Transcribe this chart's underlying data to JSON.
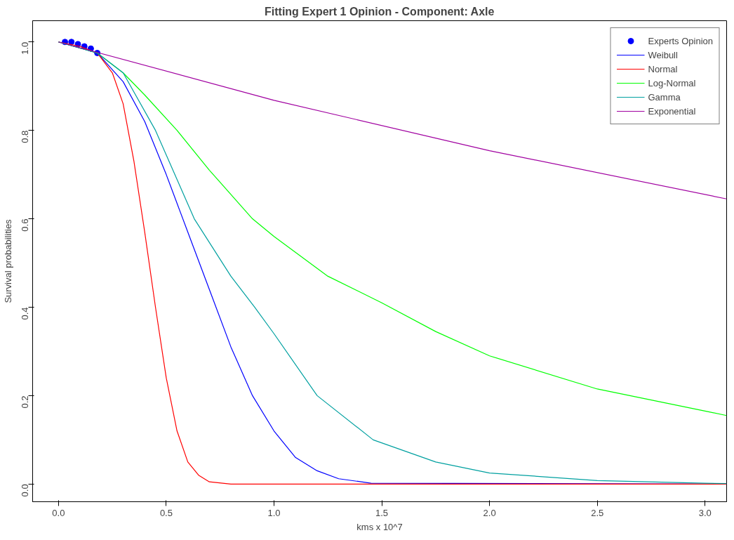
{
  "chart_data": {
    "type": "line",
    "title": "Fitting Expert 1 Opinion - Component: Axle",
    "xlabel": "kms x 10^7",
    "ylabel": "Survival probabilities",
    "xlim": [
      -0.12,
      3.1
    ],
    "ylim": [
      -0.04,
      1.048
    ],
    "xticks": [
      {
        "value": 0,
        "label": "0.0"
      },
      0.5,
      {
        "value": 1,
        "label": "1.0"
      },
      1.5,
      {
        "value": 2,
        "label": "2.0"
      },
      2.5,
      {
        "value": 3,
        "label": "3.0"
      }
    ],
    "yticks": [
      {
        "value": 0,
        "label": "0.0"
      },
      0.2,
      0.4,
      0.6,
      0.8,
      {
        "value": 1,
        "label": "1.0"
      }
    ],
    "grid": false,
    "legend": "top right",
    "line_style": "solid",
    "series": [
      {
        "name": "Experts Opinion",
        "type": "scatter",
        "marker": "circle",
        "color": "#0000ff",
        "x": [
          0.03,
          0.06,
          0.09,
          0.12,
          0.15,
          0.18
        ],
        "values": [
          1.0,
          1.0,
          0.995,
          0.99,
          0.985,
          0.975
        ]
      },
      {
        "name": "Weibull",
        "color": "#0000ff",
        "x": [
          0,
          0.18,
          0.3,
          0.4,
          0.5,
          0.6,
          0.7,
          0.8,
          0.9,
          1.0,
          1.1,
          1.2,
          1.3,
          1.45,
          3.1
        ],
        "values": [
          1,
          0.975,
          0.91,
          0.82,
          0.7,
          0.57,
          0.44,
          0.31,
          0.2,
          0.12,
          0.06,
          0.03,
          0.012,
          0.002,
          0
        ]
      },
      {
        "name": "Normal",
        "color": "#ff0000",
        "x": [
          0,
          0.1,
          0.18,
          0.25,
          0.3,
          0.35,
          0.4,
          0.45,
          0.5,
          0.55,
          0.6,
          0.65,
          0.7,
          0.8,
          0.9,
          3.1
        ],
        "values": [
          1,
          0.99,
          0.975,
          0.93,
          0.86,
          0.73,
          0.57,
          0.4,
          0.24,
          0.12,
          0.05,
          0.02,
          0.005,
          0,
          0,
          0
        ]
      },
      {
        "name": "Log-Normal",
        "color": "#00ff00",
        "x": [
          0,
          0.18,
          0.3,
          0.4,
          0.55,
          0.7,
          0.9,
          1.0,
          1.25,
          1.5,
          1.75,
          2.0,
          2.5,
          3.0,
          3.1
        ],
        "values": [
          1,
          0.975,
          0.93,
          0.88,
          0.8,
          0.71,
          0.6,
          0.56,
          0.47,
          0.41,
          0.345,
          0.29,
          0.215,
          0.165,
          0.155
        ]
      },
      {
        "name": "Gamma",
        "color": "#00a0a0",
        "x": [
          0,
          0.18,
          0.3,
          0.45,
          0.63,
          0.8,
          0.91,
          1.0,
          1.2,
          1.46,
          1.75,
          2.0,
          2.5,
          3.0,
          3.1
        ],
        "values": [
          1,
          0.975,
          0.93,
          0.8,
          0.6,
          0.47,
          0.4,
          0.34,
          0.2,
          0.1,
          0.05,
          0.025,
          0.008,
          0.002,
          0.001
        ]
      },
      {
        "name": "Exponential",
        "color": "#a000a0",
        "x": [
          0,
          1.0,
          2.0,
          3.1
        ],
        "values": [
          1,
          0.868,
          0.754,
          0.645
        ]
      }
    ]
  }
}
